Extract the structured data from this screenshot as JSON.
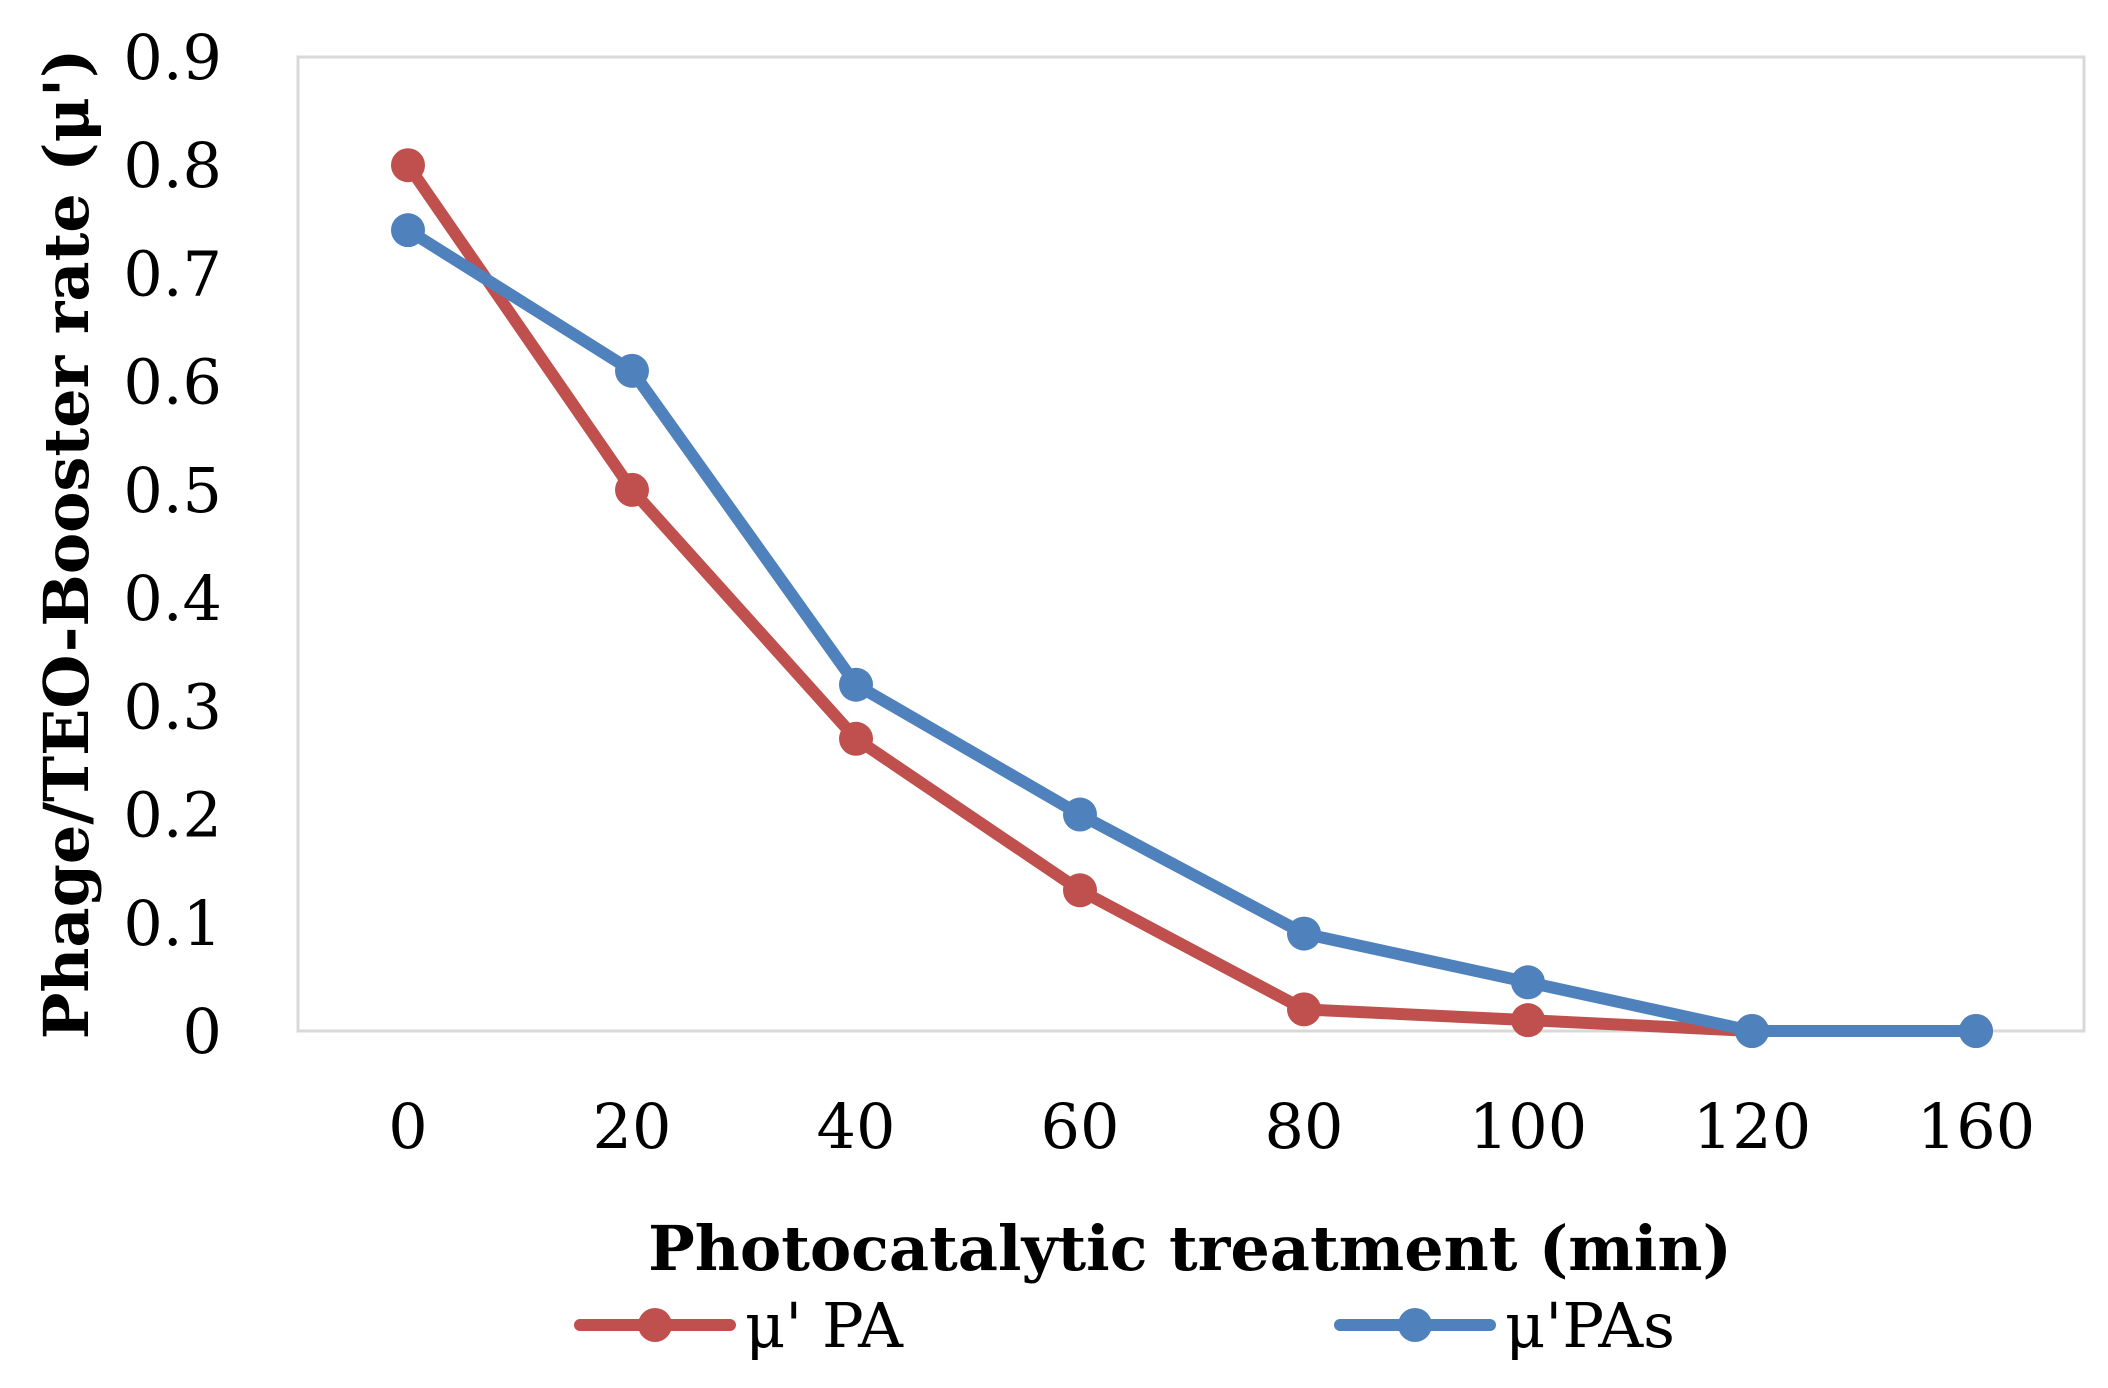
{
  "chart_data": {
    "type": "line",
    "title": "",
    "xlabel": "Photocatalytic treatment (min)",
    "ylabel": "Phage/TEO-Booster rate (μ')",
    "categories": [
      "0",
      "20",
      "40",
      "60",
      "80",
      "100",
      "120",
      "160"
    ],
    "yticks": [
      "0",
      "0.1",
      "0.2",
      "0.3",
      "0.4",
      "0.5",
      "0.6",
      "0.7",
      "0.8",
      "0.9"
    ],
    "ylim": [
      0,
      0.9
    ],
    "grid": false,
    "legend_position": "bottom",
    "series": [
      {
        "name": "μ' PA",
        "color": "#c0504d",
        "values": [
          0.8,
          0.5,
          0.27,
          0.13,
          0.02,
          0.01,
          0.0,
          0.0
        ]
      },
      {
        "name": "μ'PAs",
        "color": "#4f81bd",
        "values": [
          0.74,
          0.61,
          0.32,
          0.2,
          0.09,
          0.045,
          0.0,
          0.0
        ]
      }
    ]
  }
}
